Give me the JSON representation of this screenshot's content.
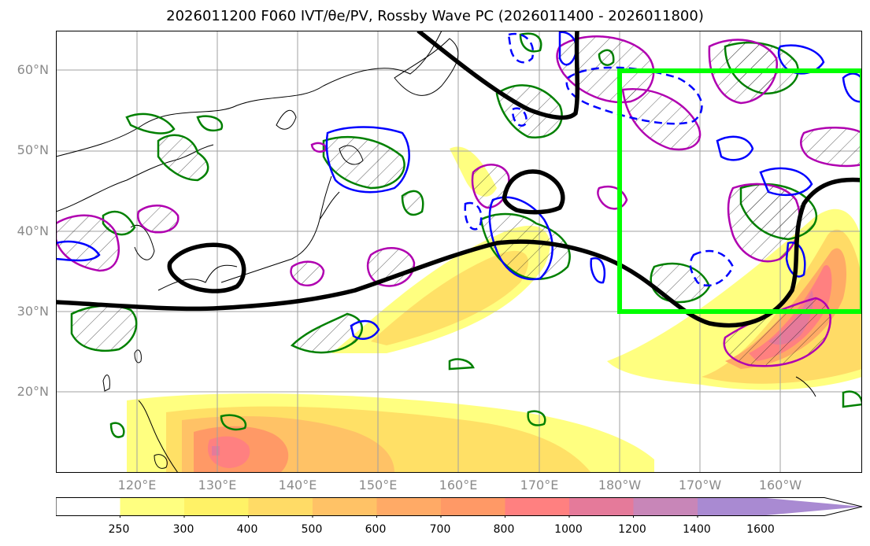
{
  "title": "2026011200 F060 IVT/θe/PV, Rossby Wave PC (2026011400 - 2026011800)",
  "lat_labels": [
    "60°N",
    "50°N",
    "40°N",
    "30°N",
    "20°N"
  ],
  "lon_labels": [
    "120°E",
    "130°E",
    "140°E",
    "150°E",
    "160°E",
    "170°E",
    "180°W",
    "170°W",
    "160°W"
  ],
  "colorbar": {
    "levels": [
      "250",
      "300",
      "400",
      "500",
      "600",
      "700",
      "800",
      "1000",
      "1200",
      "1400",
      "1600"
    ],
    "colors": [
      "#ffffff",
      "#ffff80",
      "#fff266",
      "#ffdb66",
      "#ffc266",
      "#ffaa66",
      "#ff9966",
      "#ff8080",
      "#e57a9a",
      "#c886b8",
      "#a98ad2"
    ]
  },
  "layers": {
    "box_color": "#00ff00",
    "rossby_color": "#000000",
    "positive_contour_color": "#008000",
    "pv_contour_color": "#0000ff",
    "theta_contour_color": "#b000b0"
  }
}
